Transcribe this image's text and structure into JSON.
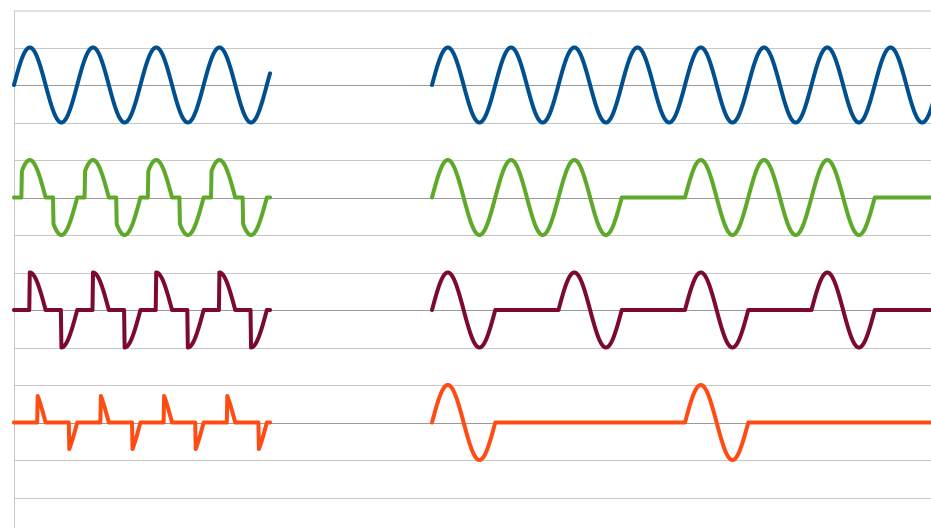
{
  "chart_data": {
    "type": "line",
    "title": "",
    "xlabel": "",
    "ylabel": "",
    "grid": true,
    "legend": "none",
    "colors": {
      "blue": "#004F8F",
      "green": "#5EA82A",
      "maroon": "#7B0A2E",
      "orange": "#FF4C14",
      "gridline": "#C8C8C8",
      "baseline": "#9A9A9A"
    },
    "panels": [
      {
        "side": "left",
        "x_range": [
          0,
          8.1
        ],
        "series": [
          {
            "color": "blue",
            "offset": 0,
            "segments": [
              {
                "kind": "sine",
                "x": [
                  0,
                  8.1
                ],
                "period": 2
              }
            ]
          },
          {
            "color": "green",
            "offset": -3,
            "segments": [
              {
                "kind": "gated_sine",
                "x": [
                  0,
                  8.1
                ],
                "period": 2,
                "flat_start": 0.0,
                "flat_len": 0.25
              }
            ]
          },
          {
            "color": "maroon",
            "offset": -6,
            "segments": [
              {
                "kind": "gated_sine",
                "x": [
                  0,
                  8.1
                ],
                "period": 2,
                "flat_start": 0.0,
                "flat_len": 0.5
              }
            ]
          },
          {
            "color": "orange",
            "offset": -9,
            "segments": [
              {
                "kind": "gated_sine",
                "x": [
                  0,
                  8.1
                ],
                "period": 2,
                "flat_start": 0.0,
                "flat_len": 0.75
              }
            ]
          }
        ]
      },
      {
        "side": "right",
        "x_range": [
          0,
          16
        ],
        "series": [
          {
            "color": "blue",
            "offset": 0,
            "segments": [
              {
                "kind": "sine",
                "x": [
                  0,
                  16
                ],
                "period": 2
              }
            ]
          },
          {
            "color": "green",
            "offset": -3,
            "segments": [
              {
                "kind": "sine",
                "x": [
                  0,
                  6
                ],
                "period": 2
              },
              {
                "kind": "flat",
                "x": [
                  6,
                  8
                ]
              },
              {
                "kind": "sine",
                "x": [
                  8,
                  14
                ],
                "period": 2
              },
              {
                "kind": "flat",
                "x": [
                  14,
                  16
                ]
              }
            ]
          },
          {
            "color": "maroon",
            "offset": -6,
            "segments": [
              {
                "kind": "sine",
                "x": [
                  0,
                  2
                ],
                "period": 2
              },
              {
                "kind": "flat",
                "x": [
                  2,
                  4
                ]
              },
              {
                "kind": "sine",
                "x": [
                  4,
                  6
                ],
                "period": 2
              },
              {
                "kind": "flat",
                "x": [
                  6,
                  8
                ]
              },
              {
                "kind": "sine",
                "x": [
                  8,
                  10
                ],
                "period": 2
              },
              {
                "kind": "flat",
                "x": [
                  10,
                  12
                ]
              },
              {
                "kind": "sine",
                "x": [
                  12,
                  14
                ],
                "period": 2
              },
              {
                "kind": "flat",
                "x": [
                  14,
                  16
                ]
              }
            ]
          },
          {
            "color": "orange",
            "offset": -9,
            "segments": [
              {
                "kind": "sine",
                "x": [
                  0,
                  2
                ],
                "period": 2
              },
              {
                "kind": "flat",
                "x": [
                  2,
                  8
                ]
              },
              {
                "kind": "sine",
                "x": [
                  8,
                  10
                ],
                "period": 2
              },
              {
                "kind": "flat",
                "x": [
                  10,
                  16
                ]
              }
            ]
          }
        ]
      }
    ],
    "amplitude": 1,
    "y_gridlines": [
      1,
      0,
      -1,
      -2,
      -3,
      -4,
      -5,
      -6,
      -7,
      -8,
      -9,
      -10,
      -11
    ],
    "baselines": [
      0,
      -3,
      -6,
      -9
    ]
  }
}
